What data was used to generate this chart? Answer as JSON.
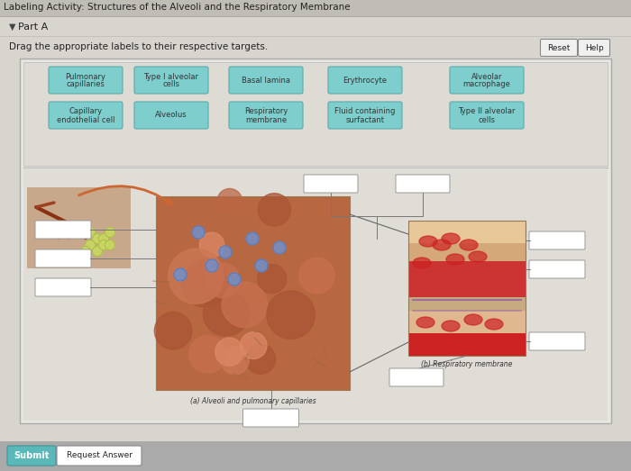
{
  "outer_bg": "#555555",
  "page_bg": "#d8d5cf",
  "top_strip_bg": "#c8c5bf",
  "title": "Labeling Activity: Structures of the Alveoli and the Respiratory Membrane",
  "title_color": "#222222",
  "part_a": "Part A",
  "instruction": "Drag the appropriate labels to their respective targets.",
  "label_bg": "#7ecece",
  "label_border": "#5aabab",
  "label_text_color": "#333333",
  "labels_row0": [
    {
      "text": "Pulmonary\ncapillaries"
    },
    {
      "text": "Type I alveolar\ncells"
    },
    {
      "text": "Basal lamina"
    },
    {
      "text": "Erythrocyte"
    },
    {
      "text": "Alveolar\nmacrophage"
    }
  ],
  "labels_row1": [
    {
      "text": "Capillary\nendothelial cell"
    },
    {
      "text": "Alveolus"
    },
    {
      "text": "Respiratory\nmembrane"
    },
    {
      "text": "Fluid containing\nsurfactant"
    },
    {
      "text": "Type II alveolar\ncells"
    }
  ],
  "reset_btn": "Reset",
  "help_btn": "Help",
  "submit_btn": "Submit",
  "request_btn": "Request Answer",
  "caption_left": "(a) Alveoli and pulmonary capillaries",
  "caption_right": "(b) Respiratory membrane",
  "content_bg": "#e8e6e0",
  "labels_area_bg": "#dedad4",
  "diagram_bg": "#e0ddd7",
  "box_fill": "#ffffff",
  "box_edge": "#999999",
  "line_color": "#777777",
  "bottom_bar_bg": "#aaaaaa",
  "submit_bg": "#5ab8b8",
  "submit_border": "#3a9898"
}
